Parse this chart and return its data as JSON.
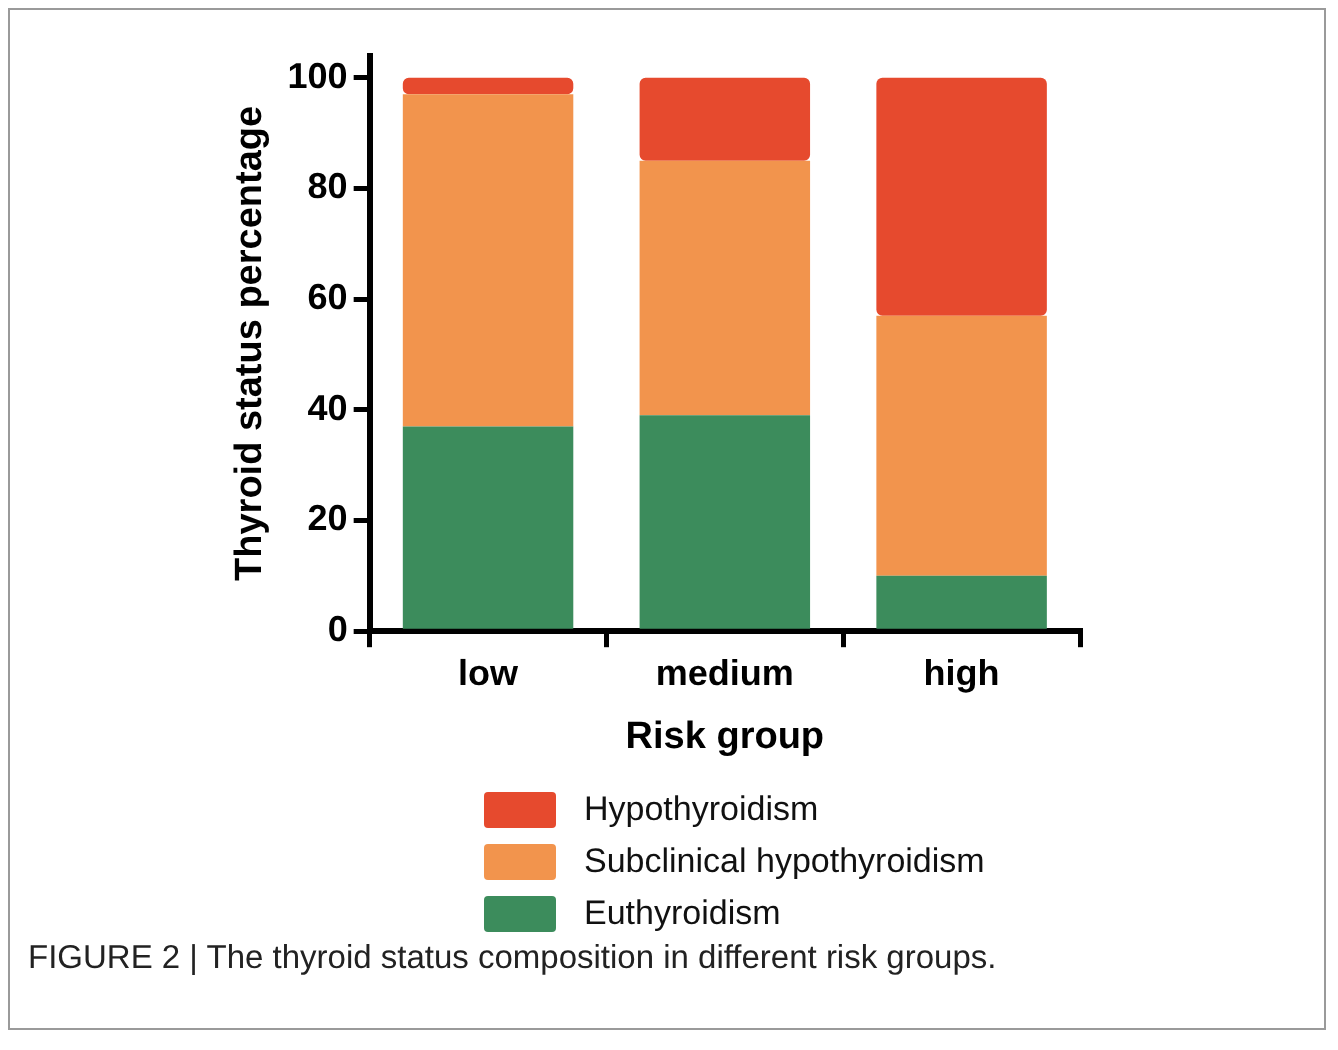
{
  "chart_data": {
    "type": "bar",
    "stacked": true,
    "xlabel": "Risk group",
    "ylabel": "Thyroid status percentage",
    "categories": [
      "low",
      "medium",
      "high"
    ],
    "series": [
      {
        "name": "Euthyroidism",
        "color": "#3c8c5c",
        "values": [
          37,
          39,
          10
        ]
      },
      {
        "name": "Subclinical hypothyroidism",
        "color": "#f2944d",
        "values": [
          60,
          46,
          47
        ]
      },
      {
        "name": "Hypothyroidism",
        "color": "#e64a2e",
        "values": [
          3,
          15,
          43
        ]
      }
    ],
    "ylim": [
      0,
      104
    ],
    "yticks": [
      0,
      20,
      40,
      60,
      80,
      100
    ],
    "grid": false,
    "legend": "bottom",
    "annotations": [
      "FIGURE 2 | The thyroid status composition in different risk groups."
    ]
  }
}
